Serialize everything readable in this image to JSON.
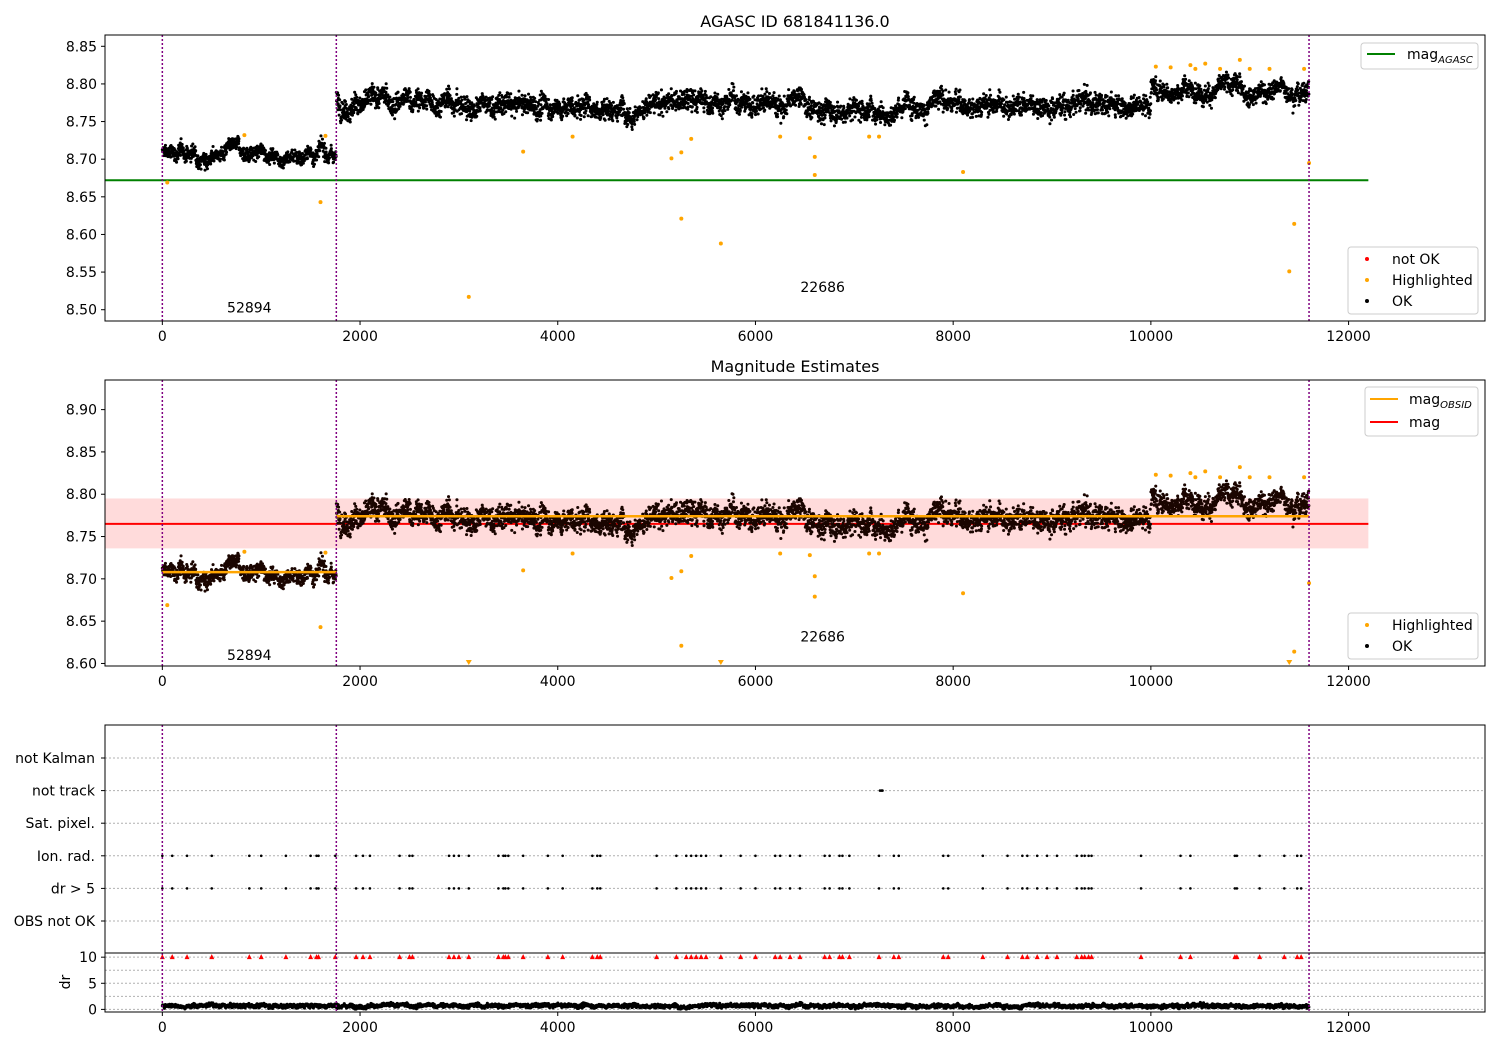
{
  "figure": {
    "width": 1500,
    "height": 1050
  },
  "colors": {
    "ok": "#000000",
    "highlighted": "#ffa500",
    "not_ok": "#ff0000",
    "mag_agasc": "#008000",
    "mag": "#ff0000",
    "mag_obsid": "#ffa500",
    "band": "#ffcccc",
    "obsid_line": "#800080",
    "grid": "#b0b0b0"
  },
  "chart_data": [
    {
      "id": "agasc",
      "type": "scatter",
      "title": "AGASC ID 681841136.0",
      "xlim": [
        -580,
        13380
      ],
      "ylim": [
        8.485,
        8.865
      ],
      "x_ticks": [
        0,
        2000,
        4000,
        6000,
        8000,
        10000,
        12000
      ],
      "x_tick_labels": [
        "0",
        "2000",
        "4000",
        "6000",
        "8000",
        "10000",
        "12000"
      ],
      "y_ticks": [
        8.5,
        8.55,
        8.6,
        8.65,
        8.7,
        8.75,
        8.8,
        8.85
      ],
      "y_tick_labels": [
        "8.50",
        "8.55",
        "8.60",
        "8.65",
        "8.70",
        "8.75",
        "8.80",
        "8.85"
      ],
      "obsid_boundaries": [
        0,
        1760,
        11600
      ],
      "obsid_labels": [
        {
          "text": "52894",
          "x": 880,
          "y": 8.503
        },
        {
          "text": "22686",
          "x": 6680,
          "y": 8.53
        }
      ],
      "lines": [
        {
          "name": "mag$_{AGASC}$",
          "label": "mag",
          "sub": "AGASC",
          "color": "#008000",
          "y": 8.672,
          "x": [
            -580,
            12200
          ]
        }
      ],
      "ok_segments": [
        {
          "x": [
            0,
            1760
          ],
          "center": 8.708,
          "spread": 0.008
        },
        {
          "x": [
            1760,
            3000
          ],
          "center": 8.776,
          "spread": 0.012
        },
        {
          "x": [
            3000,
            5000
          ],
          "center": 8.77,
          "spread": 0.012
        },
        {
          "x": [
            5000,
            6500
          ],
          "center": 8.776,
          "spread": 0.012
        },
        {
          "x": [
            6500,
            7500
          ],
          "center": 8.768,
          "spread": 0.012
        },
        {
          "x": [
            7500,
            10000
          ],
          "center": 8.775,
          "spread": 0.012
        },
        {
          "x": [
            10000,
            11600
          ],
          "center": 8.793,
          "spread": 0.01
        }
      ],
      "highlighted_points": {
        "x": [
          50,
          830,
          1600,
          1650,
          3100,
          3650,
          4150,
          5150,
          5250,
          5250,
          5350,
          5650,
          6250,
          6550,
          6600,
          6600,
          7150,
          7250,
          8100,
          10050,
          10200,
          10400,
          10450,
          10550,
          10700,
          10900,
          11000,
          11200,
          11400,
          11450,
          11550,
          11600
        ],
        "y": [
          8.669,
          8.732,
          8.643,
          8.731,
          8.517,
          8.71,
          8.73,
          8.701,
          8.621,
          8.709,
          8.727,
          8.588,
          8.73,
          8.728,
          8.679,
          8.703,
          8.73,
          8.73,
          8.683,
          8.823,
          8.822,
          8.825,
          8.82,
          8.827,
          8.82,
          8.832,
          8.82,
          8.82,
          8.551,
          8.614,
          8.82,
          8.695
        ]
      },
      "legends": [
        {
          "position": "upper right",
          "entries": [
            {
              "label": "mag",
              "sub": "AGASC",
              "kind": "line",
              "color": "#008000"
            }
          ]
        },
        {
          "position": "lower right",
          "entries": [
            {
              "label": "not OK",
              "kind": "marker",
              "color": "#ff0000"
            },
            {
              "label": "Highlighted",
              "kind": "marker",
              "color": "#ffa500"
            },
            {
              "label": "OK",
              "kind": "marker",
              "color": "#000000"
            }
          ]
        }
      ]
    },
    {
      "id": "estimates",
      "type": "scatter",
      "title": "Magnitude Estimates",
      "xlim": [
        -580,
        13380
      ],
      "ylim": [
        8.597,
        8.935
      ],
      "x_ticks": [
        0,
        2000,
        4000,
        6000,
        8000,
        10000,
        12000
      ],
      "x_tick_labels": [
        "0",
        "2000",
        "4000",
        "6000",
        "8000",
        "10000",
        "12000"
      ],
      "y_ticks": [
        8.6,
        8.65,
        8.7,
        8.75,
        8.8,
        8.85,
        8.9
      ],
      "y_tick_labels": [
        "8.60",
        "8.65",
        "8.70",
        "8.75",
        "8.80",
        "8.85",
        "8.90"
      ],
      "obsid_boundaries": [
        0,
        1760,
        11600
      ],
      "obsid_labels": [
        {
          "text": "52894",
          "x": 880,
          "y": 8.61
        },
        {
          "text": "22686",
          "x": 6680,
          "y": 8.632
        }
      ],
      "band": {
        "y": [
          8.736,
          8.795
        ],
        "x": [
          -580,
          12200
        ]
      },
      "lines": [
        {
          "name": "mag",
          "label": "mag",
          "color": "#ff0000",
          "y": 8.765,
          "x": [
            -580,
            12200
          ]
        }
      ],
      "obsid_mean_lines": [
        {
          "x": [
            0,
            1760
          ],
          "y": 8.708
        },
        {
          "x": [
            1760,
            11600
          ],
          "y": 8.774
        }
      ],
      "ok_segments": [
        {
          "x": [
            0,
            1760
          ],
          "center": 8.708,
          "spread": 0.008
        },
        {
          "x": [
            1760,
            3000
          ],
          "center": 8.776,
          "spread": 0.012
        },
        {
          "x": [
            3000,
            5000
          ],
          "center": 8.77,
          "spread": 0.012
        },
        {
          "x": [
            5000,
            6500
          ],
          "center": 8.776,
          "spread": 0.012
        },
        {
          "x": [
            6500,
            7500
          ],
          "center": 8.768,
          "spread": 0.012
        },
        {
          "x": [
            7500,
            10000
          ],
          "center": 8.775,
          "spread": 0.012
        },
        {
          "x": [
            10000,
            11600
          ],
          "center": 8.793,
          "spread": 0.01
        }
      ],
      "highlighted_points": {
        "x": [
          50,
          830,
          1600,
          1650,
          3650,
          4150,
          5150,
          5250,
          5250,
          5350,
          6250,
          6550,
          6600,
          6600,
          7150,
          7250,
          8100,
          10050,
          10200,
          10400,
          10450,
          10550,
          10700,
          10900,
          11000,
          11200,
          11450,
          11550,
          11600
        ],
        "y": [
          8.669,
          8.732,
          8.643,
          8.731,
          8.71,
          8.73,
          8.701,
          8.621,
          8.709,
          8.727,
          8.73,
          8.728,
          8.679,
          8.703,
          8.73,
          8.73,
          8.683,
          8.823,
          8.822,
          8.825,
          8.82,
          8.827,
          8.82,
          8.832,
          8.82,
          8.82,
          8.614,
          8.82,
          8.695
        ]
      },
      "clipped_points_x": [
        3100,
        5650,
        11400
      ],
      "legends": [
        {
          "position": "upper right",
          "entries": [
            {
              "label": "mag",
              "sub": "OBSID",
              "kind": "line",
              "color": "#ffa500"
            },
            {
              "label": "mag",
              "kind": "line",
              "color": "#ff0000"
            }
          ]
        },
        {
          "position": "lower right",
          "entries": [
            {
              "label": "Highlighted",
              "kind": "marker",
              "color": "#ffa500"
            },
            {
              "label": "OK",
              "kind": "marker",
              "color": "#000000"
            }
          ]
        }
      ]
    },
    {
      "id": "flags",
      "type": "scatter",
      "xlim": [
        -580,
        13380
      ],
      "categories": [
        "not Kalman",
        "not track",
        "Sat. pixel.",
        "Ion. rad.",
        "dr > 5",
        "OBS not OK"
      ],
      "obsid_boundaries": [
        0,
        1760,
        11600
      ],
      "flag_points": {
        "not track": [
          7260,
          7275,
          7285
        ],
        "Ion. rad.": [
          0,
          100,
          250,
          500,
          880,
          1000,
          1250,
          1500,
          1560,
          1580,
          1750,
          1960,
          2030,
          2100,
          2400,
          2500,
          2530,
          2900,
          2950,
          3000,
          3100,
          3400,
          3450,
          3470,
          3500,
          3650,
          3900,
          4050,
          4350,
          4400,
          4430,
          5000,
          5200,
          5300,
          5350,
          5400,
          5450,
          5500,
          5650,
          5850,
          6000,
          6200,
          6250,
          6350,
          6450,
          6700,
          6750,
          6850,
          6880,
          6950,
          7250,
          7400,
          7450,
          7900,
          7950,
          8300,
          8550,
          8700,
          8750,
          8850,
          8950,
          9050,
          9250,
          9300,
          9330,
          9370,
          9400,
          9900,
          10300,
          10400,
          10850,
          10870,
          11100,
          11350,
          11480,
          11520
        ],
        "dr > 5": [
          0,
          100,
          250,
          500,
          880,
          1000,
          1250,
          1500,
          1560,
          1580,
          1750,
          1960,
          2030,
          2100,
          2400,
          2500,
          2530,
          2900,
          2950,
          3000,
          3100,
          3400,
          3450,
          3470,
          3500,
          3650,
          3900,
          4050,
          4350,
          4400,
          4430,
          5000,
          5200,
          5300,
          5350,
          5400,
          5450,
          5500,
          5650,
          5850,
          6000,
          6200,
          6250,
          6350,
          6450,
          6700,
          6750,
          6850,
          6880,
          6950,
          7250,
          7400,
          7450,
          7900,
          7950,
          8300,
          8550,
          8700,
          8750,
          8850,
          8950,
          9050,
          9250,
          9300,
          9330,
          9370,
          9400,
          9900,
          10300,
          10400,
          10850,
          10870,
          11100,
          11350,
          11480,
          11520
        ]
      }
    },
    {
      "id": "dr",
      "type": "scatter",
      "ylabel": "dr",
      "xlim": [
        -580,
        13380
      ],
      "ylim": [
        -0.5,
        10.8
      ],
      "x_ticks": [
        0,
        2000,
        4000,
        6000,
        8000,
        10000,
        12000
      ],
      "x_tick_labels": [
        "0",
        "2000",
        "4000",
        "6000",
        "8000",
        "10000",
        "12000"
      ],
      "y_ticks": [
        0,
        5,
        10
      ],
      "y_tick_labels": [
        "0",
        "5",
        "10"
      ],
      "obsid_boundaries": [
        0,
        1760,
        11600
      ],
      "dr_baseline": {
        "x": [
          0,
          11600
        ],
        "center": 0.7,
        "spread": 0.5
      },
      "dr_clipped_x": [
        0,
        100,
        250,
        500,
        880,
        1000,
        1250,
        1500,
        1560,
        1580,
        1750,
        1960,
        2030,
        2100,
        2400,
        2500,
        2530,
        2900,
        2950,
        3000,
        3100,
        3400,
        3450,
        3470,
        3500,
        3650,
        3900,
        4050,
        4350,
        4400,
        4430,
        5000,
        5200,
        5300,
        5350,
        5400,
        5450,
        5500,
        5650,
        5850,
        6000,
        6200,
        6250,
        6350,
        6450,
        6700,
        6750,
        6850,
        6880,
        6950,
        7250,
        7400,
        7450,
        7900,
        7950,
        8300,
        8550,
        8700,
        8750,
        8850,
        8950,
        9050,
        9250,
        9300,
        9330,
        9370,
        9400,
        9900,
        10300,
        10400,
        10850,
        10870,
        11100,
        11350,
        11480,
        11520
      ]
    }
  ]
}
